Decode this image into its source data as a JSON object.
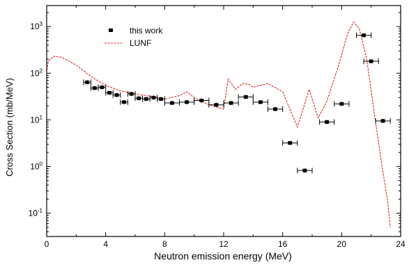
{
  "chart_data": {
    "type": "scatter",
    "title": "",
    "xlabel": "Neutron emission energy (MeV)",
    "ylabel": "Cross Section (mb/MeV)",
    "xlim": [
      0,
      24
    ],
    "ylim_log10": [
      -1.5,
      3.45
    ],
    "y_scale": "log",
    "grid": false,
    "legend_placement": "top-left",
    "x_ticks": [
      {
        "value": 0,
        "label": "0"
      },
      {
        "value": 4,
        "label": "4"
      },
      {
        "value": 8,
        "label": "8"
      },
      {
        "value": 12,
        "label": "12"
      },
      {
        "value": 16,
        "label": "16"
      },
      {
        "value": 20,
        "label": "20"
      },
      {
        "value": 24,
        "label": "24"
      }
    ],
    "y_ticks": [
      {
        "value": 0.1,
        "base": "10",
        "exp": "-1"
      },
      {
        "value": 1,
        "base": "10",
        "exp": "0"
      },
      {
        "value": 10,
        "base": "10",
        "exp": "1"
      },
      {
        "value": 100,
        "base": "10",
        "exp": "2"
      },
      {
        "value": 1000,
        "base": "10",
        "exp": "3"
      }
    ],
    "series": [
      {
        "name": "this work",
        "kind": "points",
        "marker": "square",
        "color": "#000000",
        "points": [
          {
            "x": 2.75,
            "y": 64,
            "xerr": 0.25
          },
          {
            "x": 3.25,
            "y": 48,
            "xerr": 0.25
          },
          {
            "x": 3.75,
            "y": 50,
            "xerr": 0.25
          },
          {
            "x": 4.25,
            "y": 38,
            "xerr": 0.25
          },
          {
            "x": 4.75,
            "y": 34,
            "xerr": 0.25
          },
          {
            "x": 5.25,
            "y": 24,
            "xerr": 0.25
          },
          {
            "x": 5.75,
            "y": 36,
            "xerr": 0.25
          },
          {
            "x": 6.25,
            "y": 29,
            "xerr": 0.25
          },
          {
            "x": 6.75,
            "y": 28,
            "xerr": 0.25
          },
          {
            "x": 7.25,
            "y": 30,
            "xerr": 0.25
          },
          {
            "x": 7.75,
            "y": 28,
            "xerr": 0.25
          },
          {
            "x": 8.5,
            "y": 23,
            "xerr": 0.5
          },
          {
            "x": 9.5,
            "y": 24,
            "xerr": 0.5
          },
          {
            "x": 10.5,
            "y": 26,
            "xerr": 0.5
          },
          {
            "x": 11.5,
            "y": 21,
            "xerr": 0.5
          },
          {
            "x": 12.5,
            "y": 23,
            "xerr": 0.5
          },
          {
            "x": 13.5,
            "y": 31,
            "xerr": 0.5
          },
          {
            "x": 14.5,
            "y": 24,
            "xerr": 0.5
          },
          {
            "x": 15.5,
            "y": 17,
            "xerr": 0.5
          },
          {
            "x": 16.5,
            "y": 3.2,
            "xerr": 0.5
          },
          {
            "x": 17.5,
            "y": 0.82,
            "xerr": 0.5
          },
          {
            "x": 19.0,
            "y": 9,
            "xerr": 0.5
          },
          {
            "x": 20.0,
            "y": 22,
            "xerr": 0.5
          },
          {
            "x": 21.5,
            "y": 650,
            "xerr": 0.5
          },
          {
            "x": 22.0,
            "y": 180,
            "xerr": 0.5
          },
          {
            "x": 22.8,
            "y": 9.5,
            "xerr": 0.5
          }
        ]
      },
      {
        "name": "LUNF",
        "kind": "line",
        "style": "dashed",
        "color": "#e02020",
        "points": [
          {
            "x": 0.0,
            "y": 100
          },
          {
            "x": 0.1,
            "y": 180
          },
          {
            "x": 0.5,
            "y": 230
          },
          {
            "x": 1.0,
            "y": 220
          },
          {
            "x": 2.0,
            "y": 150
          },
          {
            "x": 3.0,
            "y": 85
          },
          {
            "x": 4.0,
            "y": 55
          },
          {
            "x": 5.0,
            "y": 42
          },
          {
            "x": 6.0,
            "y": 36
          },
          {
            "x": 7.0,
            "y": 32
          },
          {
            "x": 8.0,
            "y": 28
          },
          {
            "x": 9.0,
            "y": 33
          },
          {
            "x": 9.5,
            "y": 40
          },
          {
            "x": 10.0,
            "y": 30
          },
          {
            "x": 11.0,
            "y": 21
          },
          {
            "x": 12.0,
            "y": 17
          },
          {
            "x": 12.3,
            "y": 75
          },
          {
            "x": 12.8,
            "y": 45
          },
          {
            "x": 13.3,
            "y": 60
          },
          {
            "x": 13.7,
            "y": 58
          },
          {
            "x": 14.0,
            "y": 50
          },
          {
            "x": 15.0,
            "y": 60
          },
          {
            "x": 16.0,
            "y": 40
          },
          {
            "x": 17.0,
            "y": 7
          },
          {
            "x": 17.8,
            "y": 45
          },
          {
            "x": 18.4,
            "y": 11
          },
          {
            "x": 19.0,
            "y": 25
          },
          {
            "x": 19.8,
            "y": 150
          },
          {
            "x": 20.4,
            "y": 700
          },
          {
            "x": 20.8,
            "y": 1250
          },
          {
            "x": 21.2,
            "y": 900
          },
          {
            "x": 21.7,
            "y": 200
          },
          {
            "x": 22.2,
            "y": 15
          },
          {
            "x": 22.7,
            "y": 1.2
          },
          {
            "x": 23.1,
            "y": 0.2
          },
          {
            "x": 23.3,
            "y": 0.05
          }
        ]
      }
    ]
  }
}
